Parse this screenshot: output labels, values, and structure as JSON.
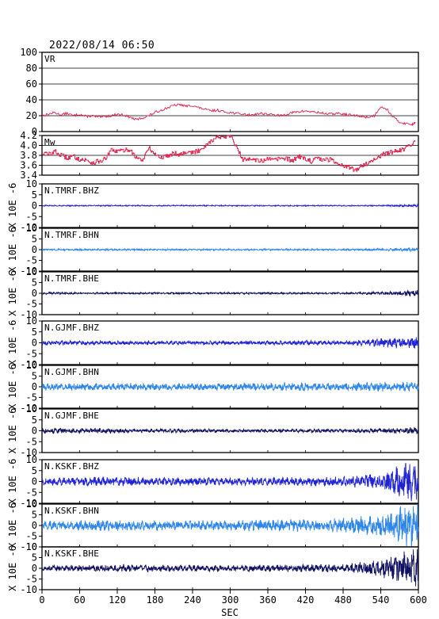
{
  "header": {
    "timestamp": "2022/08/14 06:50"
  },
  "chart_data": {
    "type": "line",
    "xlabel": "SEC",
    "xlim": [
      0,
      600
    ],
    "xticks": [
      "0",
      "60",
      "120",
      "180",
      "240",
      "300",
      "360",
      "420",
      "480",
      "540",
      "600"
    ],
    "panels": [
      {
        "label": "VR",
        "color": "#e0204a",
        "ylim": [
          0,
          100
        ],
        "yticks": [
          "100",
          "80",
          "60",
          "40",
          "20",
          "0"
        ],
        "grid": true,
        "x": [
          0,
          10,
          20,
          30,
          40,
          50,
          60,
          70,
          80,
          90,
          100,
          110,
          120,
          130,
          140,
          150,
          160,
          170,
          180,
          190,
          200,
          210,
          220,
          230,
          240,
          250,
          260,
          270,
          280,
          290,
          300,
          310,
          320,
          330,
          340,
          350,
          360,
          370,
          380,
          390,
          400,
          410,
          420,
          430,
          440,
          450,
          460,
          470,
          480,
          490,
          500,
          510,
          520,
          530,
          540,
          550,
          560,
          570,
          580,
          590,
          595
        ],
        "y": [
          20,
          22,
          24,
          21,
          23,
          20,
          22,
          19,
          20,
          18,
          19,
          20,
          22,
          21,
          18,
          15,
          17,
          20,
          24,
          27,
          30,
          33,
          34,
          32,
          33,
          30,
          28,
          26,
          27,
          25,
          24,
          23,
          22,
          21,
          22,
          23,
          22,
          21,
          20,
          22,
          24,
          25,
          26,
          25,
          24,
          23,
          22,
          23,
          22,
          21,
          20,
          19,
          18,
          20,
          32,
          28,
          18,
          12,
          10,
          9,
          12
        ]
      },
      {
        "label": "Mw",
        "color": "#e0204a",
        "ylim": [
          3.4,
          4.2
        ],
        "yticks": [
          "4.2",
          "4.0",
          "3.8",
          "3.6",
          "3.4"
        ],
        "grid": true,
        "x": [
          0,
          10,
          20,
          30,
          40,
          50,
          60,
          70,
          80,
          90,
          100,
          110,
          120,
          130,
          140,
          150,
          160,
          170,
          180,
          190,
          200,
          210,
          220,
          230,
          240,
          250,
          260,
          270,
          280,
          290,
          300,
          310,
          320,
          330,
          340,
          350,
          360,
          370,
          380,
          390,
          400,
          410,
          420,
          430,
          440,
          450,
          460,
          470,
          480,
          490,
          500,
          510,
          520,
          530,
          540,
          550,
          560,
          570,
          580,
          590,
          595
        ],
        "y": [
          3.85,
          3.82,
          3.88,
          3.8,
          3.75,
          3.78,
          3.72,
          3.7,
          3.65,
          3.68,
          3.72,
          3.9,
          3.88,
          3.9,
          3.92,
          3.75,
          3.7,
          3.95,
          3.82,
          3.75,
          3.8,
          3.85,
          3.82,
          3.88,
          3.85,
          3.9,
          4.0,
          4.1,
          4.18,
          4.15,
          4.2,
          3.95,
          3.7,
          3.75,
          3.72,
          3.68,
          3.72,
          3.7,
          3.75,
          3.72,
          3.7,
          3.78,
          3.72,
          3.68,
          3.75,
          3.7,
          3.72,
          3.65,
          3.6,
          3.55,
          3.5,
          3.6,
          3.65,
          3.72,
          3.8,
          3.85,
          3.88,
          3.9,
          3.95,
          4.0,
          4.1
        ]
      },
      {
        "label": "N.TMRF.BHZ",
        "color": "#1f22d6",
        "ylim": [
          -10,
          10
        ],
        "yticks": [
          "10",
          "5",
          "0",
          "-5",
          "-10"
        ],
        "ylabel": "X 10E -6",
        "amplitude": [
          0.2,
          0.2,
          0.2,
          0.2,
          0.2,
          0.2,
          0.2,
          0.2,
          0.2,
          0.2,
          0.5
        ]
      },
      {
        "label": "N.TMRF.BHN",
        "color": "#2e86e8",
        "ylim": [
          -10,
          10
        ],
        "yticks": [
          "10",
          "5",
          "0",
          "-5",
          "-10"
        ],
        "ylabel": "X 10E -6",
        "amplitude": [
          0.3,
          0.3,
          0.3,
          0.3,
          0.3,
          0.3,
          0.3,
          0.3,
          0.3,
          0.4,
          0.7
        ]
      },
      {
        "label": "N.TMRF.BHE",
        "color": "#101060",
        "ylim": [
          -10,
          10
        ],
        "yticks": [
          "10",
          "5",
          "0",
          "-5",
          "-10"
        ],
        "ylabel": "X 10E -6",
        "amplitude": [
          0.5,
          0.3,
          0.3,
          0.3,
          0.3,
          0.3,
          0.3,
          0.3,
          0.3,
          0.5,
          1.2
        ]
      },
      {
        "label": "N.GJMF.BHZ",
        "color": "#1f22d6",
        "ylim": [
          -10,
          10
        ],
        "yticks": [
          "10",
          "5",
          "0",
          "-5",
          "-10"
        ],
        "ylabel": "X 10E -6",
        "amplitude": [
          0.8,
          0.8,
          0.7,
          0.7,
          0.7,
          0.7,
          0.7,
          0.8,
          0.8,
          1.5,
          2.0
        ]
      },
      {
        "label": "N.GJMF.BHN",
        "color": "#2e86e8",
        "ylim": [
          -10,
          10
        ],
        "yticks": [
          "10",
          "5",
          "0",
          "-5",
          "-10"
        ],
        "ylabel": "X 10E -6",
        "amplitude": [
          1.2,
          1.3,
          1.3,
          1.3,
          1.3,
          1.3,
          1.4,
          1.5,
          1.4,
          1.6,
          1.8
        ]
      },
      {
        "label": "N.GJMF.BHE",
        "color": "#101060",
        "ylim": [
          -10,
          10
        ],
        "yticks": [
          "10",
          "5",
          "0",
          "-5",
          "-10"
        ],
        "ylabel": "X 10E -6",
        "amplitude": [
          1.0,
          0.9,
          0.8,
          0.7,
          0.7,
          0.6,
          0.6,
          0.6,
          0.6,
          0.8,
          1.2
        ]
      },
      {
        "label": "N.KSKF.BHZ",
        "color": "#1f22d6",
        "ylim": [
          -10,
          10
        ],
        "yticks": [
          "10",
          "5",
          "0",
          "-5",
          "-10"
        ],
        "ylabel": "X 10E -6",
        "amplitude": [
          1.3,
          1.5,
          1.6,
          1.4,
          1.4,
          1.3,
          1.4,
          1.5,
          1.6,
          3.0,
          8.0
        ]
      },
      {
        "label": "N.KSKF.BHN",
        "color": "#2e86e8",
        "ylim": [
          -10,
          10
        ],
        "yticks": [
          "10",
          "5",
          "0",
          "-5",
          "-10"
        ],
        "ylabel": "X 10E -6",
        "amplitude": [
          1.5,
          1.8,
          2.0,
          1.8,
          1.7,
          1.8,
          2.0,
          2.2,
          2.5,
          4.0,
          9.0
        ]
      },
      {
        "label": "N.KSKF.BHE",
        "color": "#101060",
        "ylim": [
          -10,
          10
        ],
        "yticks": [
          "10",
          "5",
          "0",
          "-5",
          "-10"
        ],
        "ylabel": "X 10E -6",
        "amplitude": [
          1.0,
          1.2,
          1.3,
          1.2,
          1.1,
          1.1,
          1.2,
          1.3,
          1.4,
          3.0,
          7.5
        ]
      }
    ]
  }
}
